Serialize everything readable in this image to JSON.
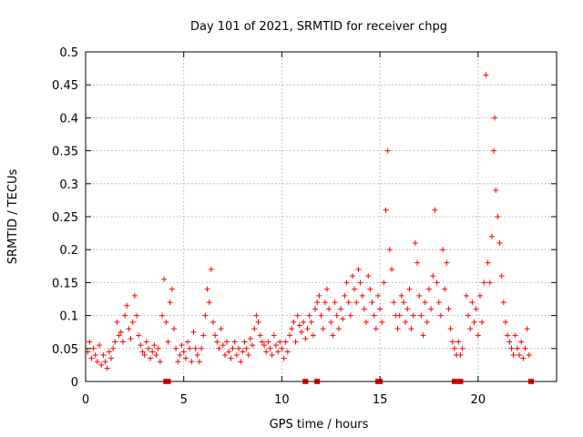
{
  "chart_data": {
    "type": "scatter",
    "title": "Day 101 of 2021, SRMTID for receiver chpg",
    "xlabel": "GPS time / hours",
    "ylabel": "SRMTID / TECUs",
    "xlim": [
      0,
      24
    ],
    "ylim": [
      0,
      0.5
    ],
    "xticks": [
      0,
      5,
      10,
      15,
      20
    ],
    "xtick_labels": [
      "0",
      "5",
      "10",
      "15",
      "20"
    ],
    "yticks": [
      0,
      0.05,
      0.1,
      0.15,
      0.2,
      0.25,
      0.3,
      0.35,
      0.4,
      0.45,
      0.5
    ],
    "ytick_labels": [
      "0",
      "0.05",
      "0.1",
      "0.15",
      "0.2",
      "0.25",
      "0.3",
      "0.35",
      "0.4",
      "0.45",
      "0.5"
    ],
    "grid": true,
    "marker": "+",
    "color": "#ff0000",
    "series": [
      {
        "name": "SRMTID",
        "points": [
          [
            0.1,
            0.045
          ],
          [
            0.2,
            0.06
          ],
          [
            0.3,
            0.035
          ],
          [
            0.4,
            0.05
          ],
          [
            0.5,
            0.04
          ],
          [
            0.6,
            0.03
          ],
          [
            0.7,
            0.055
          ],
          [
            0.8,
            0.025
          ],
          [
            0.9,
            0.04
          ],
          [
            1.0,
            0.03
          ],
          [
            1.1,
            0.02
          ],
          [
            1.2,
            0.045
          ],
          [
            1.3,
            0.035
          ],
          [
            1.4,
            0.05
          ],
          [
            1.5,
            0.06
          ],
          [
            1.6,
            0.09
          ],
          [
            1.7,
            0.07
          ],
          [
            1.8,
            0.075
          ],
          [
            1.9,
            0.06
          ],
          [
            2.0,
            0.1
          ],
          [
            2.1,
            0.115
          ],
          [
            2.2,
            0.08
          ],
          [
            2.3,
            0.065
          ],
          [
            2.4,
            0.09
          ],
          [
            2.5,
            0.13
          ],
          [
            2.6,
            0.1
          ],
          [
            2.7,
            0.07
          ],
          [
            2.8,
            0.055
          ],
          [
            2.9,
            0.045
          ],
          [
            3.0,
            0.04
          ],
          [
            3.1,
            0.06
          ],
          [
            3.2,
            0.05
          ],
          [
            3.3,
            0.035
          ],
          [
            3.4,
            0.045
          ],
          [
            3.5,
            0.055
          ],
          [
            3.6,
            0.04
          ],
          [
            3.7,
            0.05
          ],
          [
            3.8,
            0.03
          ],
          [
            3.9,
            0.1
          ],
          [
            4.0,
            0.155
          ],
          [
            4.1,
            0.09
          ],
          [
            4.2,
            0.06
          ],
          [
            4.3,
            0.12
          ],
          [
            4.4,
            0.14
          ],
          [
            4.5,
            0.08
          ],
          [
            4.6,
            0.05
          ],
          [
            4.7,
            0.03
          ],
          [
            4.8,
            0.04
          ],
          [
            4.9,
            0.055
          ],
          [
            5.0,
            0.045
          ],
          [
            5.1,
            0.035
          ],
          [
            5.2,
            0.06
          ],
          [
            5.3,
            0.05
          ],
          [
            5.4,
            0.03
          ],
          [
            5.5,
            0.075
          ],
          [
            5.6,
            0.05
          ],
          [
            5.7,
            0.04
          ],
          [
            5.8,
            0.03
          ],
          [
            5.9,
            0.05
          ],
          [
            6.0,
            0.07
          ],
          [
            6.1,
            0.1
          ],
          [
            6.2,
            0.14
          ],
          [
            6.3,
            0.12
          ],
          [
            6.4,
            0.17
          ],
          [
            6.5,
            0.09
          ],
          [
            6.6,
            0.07
          ],
          [
            6.7,
            0.06
          ],
          [
            6.8,
            0.05
          ],
          [
            6.9,
            0.08
          ],
          [
            7.0,
            0.055
          ],
          [
            7.1,
            0.04
          ],
          [
            7.2,
            0.06
          ],
          [
            7.3,
            0.045
          ],
          [
            7.4,
            0.035
          ],
          [
            7.5,
            0.05
          ],
          [
            7.6,
            0.06
          ],
          [
            7.7,
            0.04
          ],
          [
            7.8,
            0.05
          ],
          [
            7.9,
            0.03
          ],
          [
            8.0,
            0.045
          ],
          [
            8.1,
            0.06
          ],
          [
            8.2,
            0.05
          ],
          [
            8.3,
            0.04
          ],
          [
            8.4,
            0.065
          ],
          [
            8.5,
            0.055
          ],
          [
            8.6,
            0.08
          ],
          [
            8.7,
            0.1
          ],
          [
            8.8,
            0.09
          ],
          [
            8.9,
            0.07
          ],
          [
            9.0,
            0.06
          ],
          [
            9.1,
            0.055
          ],
          [
            9.2,
            0.045
          ],
          [
            9.3,
            0.06
          ],
          [
            9.4,
            0.05
          ],
          [
            9.5,
            0.04
          ],
          [
            9.6,
            0.07
          ],
          [
            9.7,
            0.055
          ],
          [
            9.8,
            0.045
          ],
          [
            9.9,
            0.06
          ],
          [
            10.0,
            0.05
          ],
          [
            10.1,
            0.035
          ],
          [
            10.2,
            0.06
          ],
          [
            10.3,
            0.045
          ],
          [
            10.4,
            0.07
          ],
          [
            10.5,
            0.08
          ],
          [
            10.6,
            0.09
          ],
          [
            10.7,
            0.06
          ],
          [
            10.8,
            0.1
          ],
          [
            10.9,
            0.085
          ],
          [
            11.0,
            0.075
          ],
          [
            11.1,
            0.09
          ],
          [
            11.2,
            0.065
          ],
          [
            11.3,
            0.08
          ],
          [
            11.4,
            0.1
          ],
          [
            11.5,
            0.09
          ],
          [
            11.6,
            0.07
          ],
          [
            11.7,
            0.11
          ],
          [
            11.8,
            0.12
          ],
          [
            11.9,
            0.13
          ],
          [
            12.0,
            0.1
          ],
          [
            12.1,
            0.08
          ],
          [
            12.2,
            0.12
          ],
          [
            12.3,
            0.14
          ],
          [
            12.4,
            0.11
          ],
          [
            12.5,
            0.09
          ],
          [
            12.6,
            0.07
          ],
          [
            12.7,
            0.12
          ],
          [
            12.8,
            0.1
          ],
          [
            12.9,
            0.08
          ],
          [
            13.0,
            0.11
          ],
          [
            13.1,
            0.095
          ],
          [
            13.2,
            0.13
          ],
          [
            13.3,
            0.15
          ],
          [
            13.4,
            0.12
          ],
          [
            13.5,
            0.1
          ],
          [
            13.6,
            0.16
          ],
          [
            13.7,
            0.14
          ],
          [
            13.8,
            0.12
          ],
          [
            13.9,
            0.17
          ],
          [
            14.0,
            0.15
          ],
          [
            14.1,
            0.13
          ],
          [
            14.2,
            0.11
          ],
          [
            14.3,
            0.09
          ],
          [
            14.4,
            0.16
          ],
          [
            14.5,
            0.14
          ],
          [
            14.6,
            0.12
          ],
          [
            14.7,
            0.1
          ],
          [
            14.8,
            0.08
          ],
          [
            14.9,
            0.13
          ],
          [
            15.0,
            0.11
          ],
          [
            15.1,
            0.09
          ],
          [
            15.2,
            0.15
          ],
          [
            15.3,
            0.26
          ],
          [
            15.4,
            0.35
          ],
          [
            15.5,
            0.2
          ],
          [
            15.6,
            0.17
          ],
          [
            15.7,
            0.12
          ],
          [
            15.8,
            0.1
          ],
          [
            15.9,
            0.08
          ],
          [
            16.0,
            0.1
          ],
          [
            16.1,
            0.13
          ],
          [
            16.2,
            0.12
          ],
          [
            16.3,
            0.09
          ],
          [
            16.4,
            0.11
          ],
          [
            16.5,
            0.14
          ],
          [
            16.6,
            0.08
          ],
          [
            16.7,
            0.1
          ],
          [
            16.8,
            0.21
          ],
          [
            16.9,
            0.18
          ],
          [
            17.0,
            0.13
          ],
          [
            17.1,
            0.1
          ],
          [
            17.2,
            0.07
          ],
          [
            17.3,
            0.12
          ],
          [
            17.4,
            0.09
          ],
          [
            17.5,
            0.14
          ],
          [
            17.6,
            0.11
          ],
          [
            17.7,
            0.16
          ],
          [
            17.8,
            0.26
          ],
          [
            17.9,
            0.15
          ],
          [
            18.0,
            0.12
          ],
          [
            18.1,
            0.1
          ],
          [
            18.2,
            0.2
          ],
          [
            18.3,
            0.14
          ],
          [
            18.4,
            0.18
          ],
          [
            18.5,
            0.11
          ],
          [
            18.6,
            0.08
          ],
          [
            18.7,
            0.06
          ],
          [
            18.8,
            0.05
          ],
          [
            18.9,
            0.04
          ],
          [
            19.0,
            0.06
          ],
          [
            19.1,
            0.04
          ],
          [
            19.2,
            0.05
          ],
          [
            19.4,
            0.13
          ],
          [
            19.5,
            0.1
          ],
          [
            19.6,
            0.08
          ],
          [
            19.7,
            0.12
          ],
          [
            19.8,
            0.09
          ],
          [
            19.9,
            0.11
          ],
          [
            20.0,
            0.07
          ],
          [
            20.1,
            0.13
          ],
          [
            20.2,
            0.09
          ],
          [
            20.3,
            0.15
          ],
          [
            20.4,
            0.465
          ],
          [
            20.5,
            0.18
          ],
          [
            20.6,
            0.15
          ],
          [
            20.7,
            0.22
          ],
          [
            20.8,
            0.35
          ],
          [
            20.85,
            0.4
          ],
          [
            20.9,
            0.29
          ],
          [
            21.0,
            0.25
          ],
          [
            21.1,
            0.21
          ],
          [
            21.2,
            0.16
          ],
          [
            21.3,
            0.12
          ],
          [
            21.4,
            0.09
          ],
          [
            21.5,
            0.07
          ],
          [
            21.6,
            0.06
          ],
          [
            21.7,
            0.05
          ],
          [
            21.8,
            0.04
          ],
          [
            21.9,
            0.07
          ],
          [
            22.0,
            0.05
          ],
          [
            22.1,
            0.04
          ],
          [
            22.2,
            0.06
          ],
          [
            22.3,
            0.035
          ],
          [
            22.4,
            0.05
          ],
          [
            22.5,
            0.08
          ],
          [
            22.6,
            0.04
          ]
        ]
      }
    ],
    "gap_markers_x": [
      4.1,
      4.2,
      11.2,
      11.8,
      14.9,
      15.0,
      18.8,
      18.9,
      19.0,
      19.1,
      22.7
    ]
  }
}
